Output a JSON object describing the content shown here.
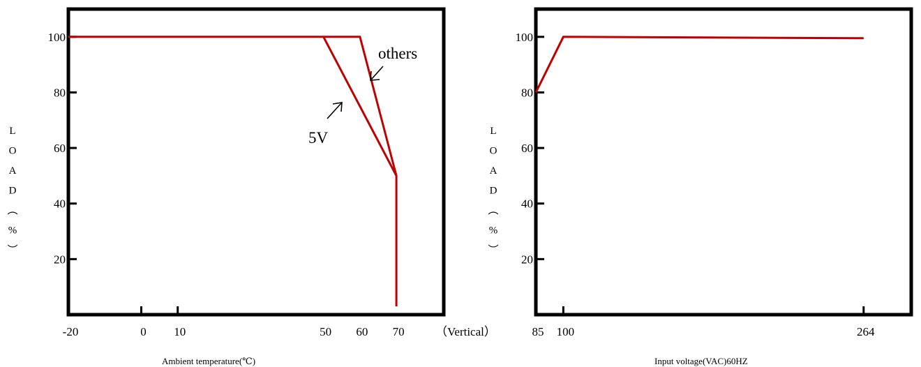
{
  "colors": {
    "curve": "#c00000",
    "frame": "#000000",
    "text": "#000000"
  },
  "chart_data": [
    {
      "type": "line",
      "xlabel": "Ambient temperature(℃)",
      "ylabel_chars": [
        "L",
        "O",
        "A",
        "D",
        "︵",
        "%",
        "︶"
      ],
      "y_ticks": [
        20,
        40,
        60,
        80,
        100
      ],
      "x_tick_labels": [
        "-20",
        "0",
        "10",
        "50",
        "60",
        "70"
      ],
      "x_ticks": [
        -20,
        0,
        10,
        50,
        60,
        70
      ],
      "x_axis_suffix": "（Vertical）",
      "xlim": [
        -20,
        83
      ],
      "ylim": [
        0,
        110
      ],
      "series": [
        {
          "name": "others",
          "points": [
            [
              -20,
              100
            ],
            [
              60,
              100
            ],
            [
              70,
              50
            ],
            [
              70,
              3
            ]
          ]
        },
        {
          "name": "5V",
          "points": [
            [
              50,
              100
            ],
            [
              70,
              50
            ]
          ]
        }
      ],
      "annotations": [
        "others",
        "5V"
      ]
    },
    {
      "type": "line",
      "xlabel": "Input voltage(VAC)60HZ",
      "ylabel_chars": [
        "L",
        "O",
        "A",
        "D",
        "︵",
        "%",
        "︶"
      ],
      "y_ticks": [
        20,
        40,
        60,
        80,
        100
      ],
      "x_tick_labels": [
        "85",
        "100",
        "264"
      ],
      "x_ticks": [
        85,
        100,
        264
      ],
      "xlim": [
        85,
        290
      ],
      "ylim": [
        0,
        110
      ],
      "series": [
        {
          "points": [
            [
              85,
              80
            ],
            [
              100,
              100
            ],
            [
              264,
              99.5
            ]
          ]
        }
      ]
    }
  ]
}
